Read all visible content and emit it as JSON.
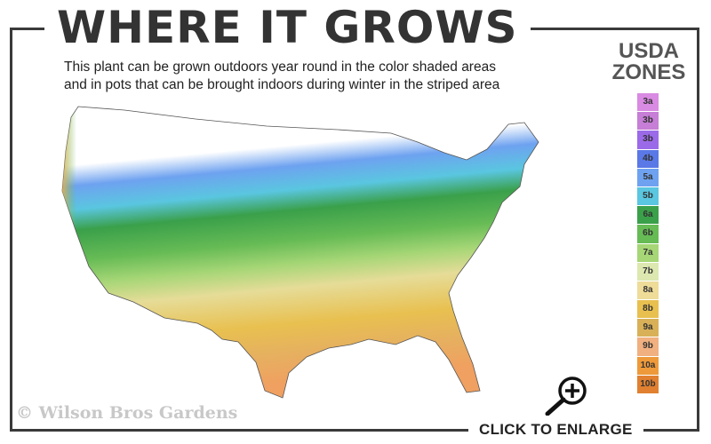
{
  "title": "WHERE IT GROWS",
  "subtitle_lines": [
    "This plant can be grown outdoors year round in the color shaded areas",
    "and in pots that can be brought indoors during winter in the striped area"
  ],
  "legend": {
    "title_line1": "USDA",
    "title_line2": "ZONES",
    "zones": [
      {
        "label": "3a",
        "color": "#d98ae2"
      },
      {
        "label": "3b",
        "color": "#c67ed6"
      },
      {
        "label": "3b",
        "color": "#9b6ae8"
      },
      {
        "label": "4b",
        "color": "#5a78e6"
      },
      {
        "label": "5a",
        "color": "#6ea2f0"
      },
      {
        "label": "5b",
        "color": "#5ac6e0"
      },
      {
        "label": "6a",
        "color": "#3aa04a"
      },
      {
        "label": "6b",
        "color": "#66bb55"
      },
      {
        "label": "7a",
        "color": "#a6d676"
      },
      {
        "label": "7b",
        "color": "#dce8b0"
      },
      {
        "label": "8a",
        "color": "#eedc98"
      },
      {
        "label": "8b",
        "color": "#e8c050"
      },
      {
        "label": "9a",
        "color": "#d8b058"
      },
      {
        "label": "9b",
        "color": "#f0b080"
      },
      {
        "label": "10a",
        "color": "#ee9a3a"
      },
      {
        "label": "10b",
        "color": "#e08030"
      }
    ]
  },
  "map_icon": "usa-hardiness-zone-map",
  "watermark": "© Wilson Bros Gardens",
  "enlarge_label": "CLICK TO ENLARGE",
  "enlarge_icon": "magnifier-plus-icon"
}
